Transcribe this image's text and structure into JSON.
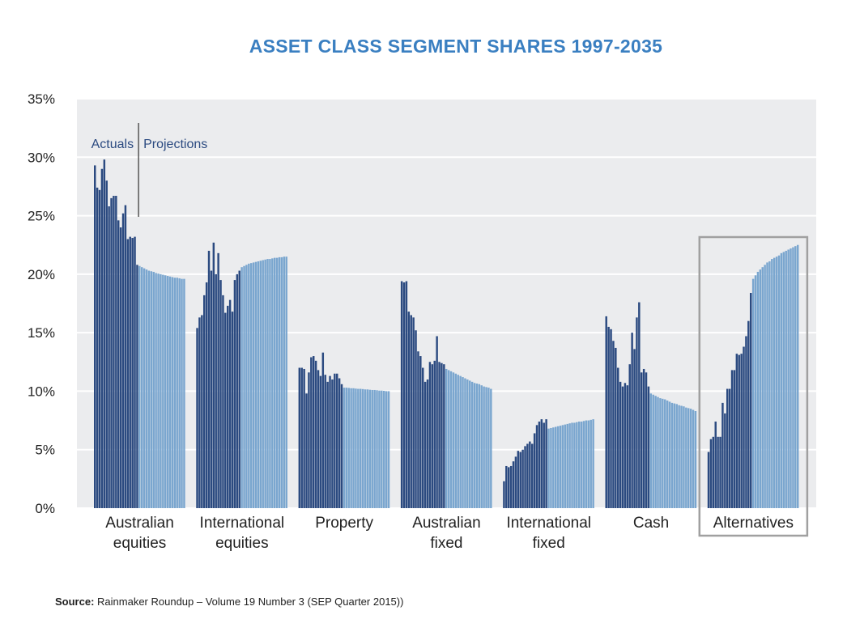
{
  "chart_data": {
    "type": "grouped-bar",
    "title": "ASSET CLASS SEGMENT SHARES 1997-2035",
    "source_label": "Source:",
    "source": "Rainmaker Roundup – Volume 19 Number 3 (SEP Quarter 2015))",
    "categories": [
      "Australian equities",
      "International equities",
      "Property",
      "Australian fixed",
      "International fixed",
      "Cash",
      "Alternatives"
    ],
    "highlight": "Alternatives",
    "ylim": [
      0,
      35
    ],
    "yticks": [
      {
        "value": 0,
        "label": "0%"
      },
      {
        "value": 5,
        "label": "5%"
      },
      {
        "value": 10,
        "label": "10%"
      },
      {
        "value": 15,
        "label": "15%"
      },
      {
        "value": 20,
        "label": "20%"
      },
      {
        "value": 25,
        "label": "25%"
      },
      {
        "value": 30,
        "label": "30%"
      },
      {
        "value": 35,
        "label": "35%"
      }
    ],
    "grid": true,
    "series": [
      {
        "name": "Actuals",
        "color": "#2b4a80",
        "values": [
          [
            29.3,
            27.4,
            27.2,
            29.0,
            29.8,
            28.0,
            25.8,
            26.5,
            26.7,
            26.7,
            24.6,
            24.0,
            25.2,
            25.9,
            23.0,
            23.2,
            23.1,
            23.2,
            20.8
          ],
          [
            15.4,
            16.3,
            16.5,
            18.2,
            19.3,
            22.0,
            20.3,
            22.7,
            20.0,
            21.8,
            19.5,
            18.2,
            16.7,
            17.3,
            17.8,
            16.8,
            19.5,
            20.0,
            20.3
          ],
          [
            12.0,
            12.0,
            11.9,
            9.8,
            11.6,
            12.9,
            13.0,
            12.6,
            11.8,
            11.3,
            13.3,
            11.4,
            10.8,
            11.3,
            11.0,
            11.5,
            11.5,
            11.1,
            10.6
          ],
          [
            19.4,
            19.3,
            19.4,
            16.8,
            16.5,
            16.3,
            15.2,
            13.4,
            13.0,
            12.0,
            10.8,
            11.0,
            12.5,
            12.3,
            12.6,
            14.7,
            12.5,
            12.4,
            12.3
          ],
          [
            2.3,
            3.6,
            3.5,
            3.6,
            4.0,
            4.4,
            4.9,
            4.8,
            5.0,
            5.3,
            5.5,
            5.7,
            5.5,
            6.4,
            7.1,
            7.4,
            7.6,
            7.3,
            7.6
          ],
          [
            16.4,
            15.5,
            15.3,
            14.3,
            13.7,
            12.0,
            10.8,
            10.4,
            10.7,
            10.5,
            12.3,
            15.0,
            13.6,
            16.3,
            17.6,
            11.6,
            11.9,
            11.6,
            10.4
          ],
          [
            4.8,
            5.9,
            6.1,
            7.4,
            6.1,
            6.1,
            9.0,
            8.1,
            10.2,
            10.2,
            11.8,
            11.8,
            13.2,
            13.1,
            13.2,
            13.8,
            14.7,
            16.0,
            18.4
          ]
        ]
      },
      {
        "name": "Projections",
        "color": "#7aa6cf",
        "values": [
          [
            20.7,
            20.6,
            20.5,
            20.4,
            20.3,
            20.25,
            20.2,
            20.1,
            20.05,
            20.0,
            19.95,
            19.9,
            19.85,
            19.8,
            19.75,
            19.7,
            19.7,
            19.65,
            19.6,
            19.6
          ],
          [
            20.6,
            20.7,
            20.8,
            20.9,
            20.95,
            21.0,
            21.05,
            21.1,
            21.15,
            21.2,
            21.25,
            21.3,
            21.3,
            21.35,
            21.4,
            21.4,
            21.45,
            21.45,
            21.5,
            21.5
          ],
          [
            10.3,
            10.3,
            10.28,
            10.25,
            10.25,
            10.22,
            10.2,
            10.2,
            10.18,
            10.15,
            10.15,
            10.12,
            10.1,
            10.1,
            10.08,
            10.05,
            10.05,
            10.03,
            10.0,
            10.0
          ],
          [
            11.9,
            11.8,
            11.7,
            11.6,
            11.5,
            11.4,
            11.3,
            11.2,
            11.1,
            11.0,
            10.9,
            10.8,
            10.7,
            10.65,
            10.6,
            10.5,
            10.4,
            10.35,
            10.3,
            10.2
          ],
          [
            6.8,
            6.85,
            6.9,
            6.95,
            7.0,
            7.05,
            7.1,
            7.15,
            7.2,
            7.25,
            7.3,
            7.3,
            7.35,
            7.4,
            7.4,
            7.45,
            7.5,
            7.5,
            7.55,
            7.6
          ],
          [
            9.8,
            9.7,
            9.6,
            9.5,
            9.4,
            9.35,
            9.3,
            9.2,
            9.1,
            9.0,
            8.95,
            8.9,
            8.8,
            8.75,
            8.7,
            8.6,
            8.55,
            8.5,
            8.4,
            8.3
          ],
          [
            19.6,
            19.9,
            20.2,
            20.4,
            20.6,
            20.8,
            21.0,
            21.1,
            21.3,
            21.4,
            21.5,
            21.6,
            21.8,
            21.9,
            22.0,
            22.1,
            22.2,
            22.3,
            22.4,
            22.5
          ]
        ]
      }
    ]
  }
}
